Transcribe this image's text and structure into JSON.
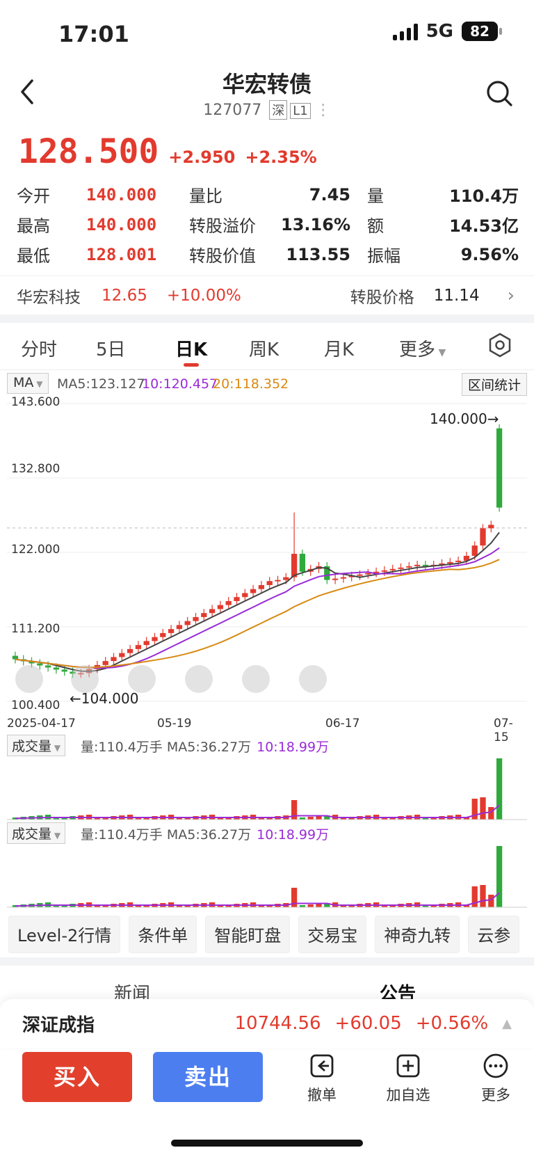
{
  "status": {
    "time": "17:01",
    "network": "5G",
    "battery": "82"
  },
  "header": {
    "title": "华宏转债",
    "code": "127077",
    "tag1": "深",
    "tag2": "L1"
  },
  "quote": {
    "price": "128.500",
    "change": "+2.950",
    "pct": "+2.35%"
  },
  "stats": {
    "rows": [
      {
        "l1": "今开",
        "v1": "140.000",
        "l2": "量比",
        "v2": "7.45",
        "l3": "量",
        "v3": "110.4万"
      },
      {
        "l1": "最高",
        "v1": "140.000",
        "l2": "转股溢价",
        "v2": "13.16%",
        "l3": "额",
        "v3": "14.53亿"
      },
      {
        "l1": "最低",
        "v1": "128.001",
        "l2": "转股价值",
        "v2": "113.55",
        "l3": "振幅",
        "v3": "9.56%"
      }
    ]
  },
  "underlying": {
    "name": "华宏科技",
    "price": "12.65",
    "pct": "+10.00%",
    "conv_label": "转股价格",
    "conv_value": "11.14"
  },
  "tabs": [
    "分时",
    "5日",
    "日K",
    "周K",
    "月K",
    "更多"
  ],
  "ma_bar": {
    "selector": "MA",
    "ma5": "MA5:123.127",
    "ma10": "10:120.457",
    "ma20": "20:118.352",
    "stat_button": "区间统计"
  },
  "chart_data": {
    "type": "candlestick",
    "y_ticks": [
      "143.600",
      "132.800",
      "122.000",
      "111.200",
      "100.400"
    ],
    "x_ticks": [
      "2025-04-17",
      "05-19",
      "06-17",
      "07-15"
    ],
    "ylim": [
      100.4,
      143.6
    ],
    "high_marker": "140.000→",
    "low_marker": "←104.000",
    "colors": {
      "up": "#e23a2e",
      "down": "#2faa3c",
      "ma5": "#444444",
      "ma10": "#9a2bd8",
      "ma20": "#d88a12"
    }
  },
  "volume": {
    "selector": "成交量",
    "text": "量:110.4万手 MA5:36.27万",
    "ma10": "10:18.99万"
  },
  "quick_tools": [
    "Level-2行情",
    "条件单",
    "智能盯盘",
    "交易宝",
    "神奇九转",
    "云参"
  ],
  "news_tabs": {
    "news": "新闻",
    "notice": "公告"
  },
  "index": {
    "name": "深证成指",
    "value": "10744.56",
    "change": "+60.05",
    "pct": "+0.56%"
  },
  "actions": {
    "buy": "买入",
    "sell": "卖出",
    "cancel": "撤单",
    "add": "加自选",
    "more": "更多"
  }
}
